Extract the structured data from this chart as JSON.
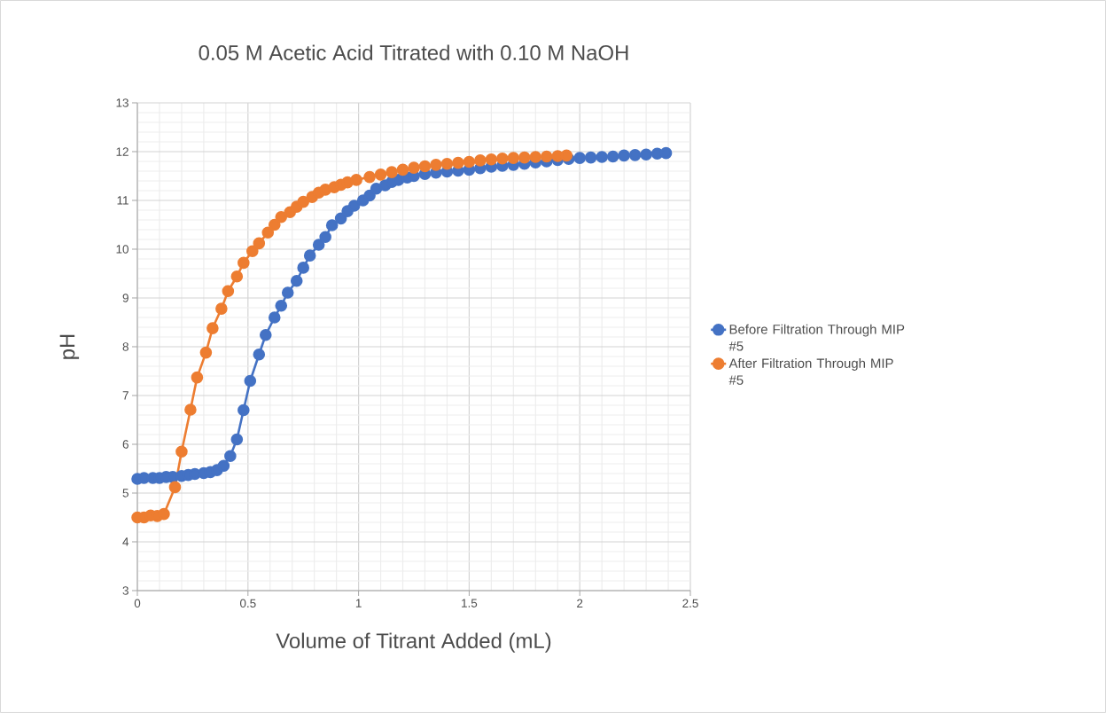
{
  "chart_data": {
    "type": "line",
    "title": "0.05 M Acetic Acid Titrated with 0.10 M NaOH",
    "xlabel": "Volume of Titrant Added (mL)",
    "ylabel": "pH",
    "xlim": [
      0,
      2.5
    ],
    "xticks": [
      0,
      0.5,
      1,
      1.5,
      2,
      2.5
    ],
    "ylim": [
      3,
      13
    ],
    "yticks": [
      3,
      4,
      5,
      6,
      7,
      8,
      9,
      10,
      11,
      12,
      13
    ],
    "grid": true,
    "legend": "right",
    "marker": "circle",
    "line_style": "solid",
    "series": [
      {
        "name": "Before Filtration Through MIP #5",
        "color": "#4472c4",
        "x": [
          0,
          0.03,
          0.07,
          0.1,
          0.13,
          0.16,
          0.2,
          0.23,
          0.26,
          0.3,
          0.33,
          0.36,
          0.39,
          0.42,
          0.45,
          0.48,
          0.51,
          0.55,
          0.58,
          0.62,
          0.65,
          0.68,
          0.72,
          0.75,
          0.78,
          0.82,
          0.85,
          0.88,
          0.92,
          0.95,
          0.98,
          1.02,
          1.05,
          1.08,
          1.12,
          1.15,
          1.18,
          1.22,
          1.25,
          1.3,
          1.35,
          1.4,
          1.45,
          1.5,
          1.55,
          1.6,
          1.65,
          1.7,
          1.75,
          1.8,
          1.85,
          1.9,
          1.95,
          2.0,
          2.05,
          2.1,
          2.15,
          2.2,
          2.25,
          2.3,
          2.35,
          2.39
        ],
        "values": [
          5.29,
          5.31,
          5.31,
          5.31,
          5.33,
          5.33,
          5.35,
          5.37,
          5.39,
          5.41,
          5.43,
          5.47,
          5.56,
          5.76,
          6.1,
          6.7,
          7.3,
          7.84,
          8.24,
          8.6,
          8.84,
          9.11,
          9.35,
          9.62,
          9.87,
          10.09,
          10.25,
          10.49,
          10.63,
          10.78,
          10.89,
          11.0,
          11.1,
          11.24,
          11.31,
          11.38,
          11.42,
          11.47,
          11.5,
          11.54,
          11.57,
          11.59,
          11.61,
          11.63,
          11.66,
          11.69,
          11.71,
          11.73,
          11.75,
          11.78,
          11.8,
          11.83,
          11.85,
          11.87,
          11.88,
          11.89,
          11.9,
          11.92,
          11.93,
          11.94,
          11.96,
          11.97
        ]
      },
      {
        "name": "After Filtration Through MIP #5",
        "color": "#ed7d31",
        "x": [
          0,
          0.03,
          0.06,
          0.09,
          0.12,
          0.17,
          0.2,
          0.24,
          0.27,
          0.31,
          0.34,
          0.38,
          0.41,
          0.45,
          0.48,
          0.52,
          0.55,
          0.59,
          0.62,
          0.65,
          0.69,
          0.72,
          0.75,
          0.79,
          0.82,
          0.85,
          0.89,
          0.92,
          0.95,
          0.99,
          1.05,
          1.1,
          1.15,
          1.2,
          1.25,
          1.3,
          1.35,
          1.4,
          1.45,
          1.5,
          1.55,
          1.6,
          1.65,
          1.7,
          1.75,
          1.8,
          1.85,
          1.9,
          1.94
        ],
        "values": [
          4.5,
          4.5,
          4.54,
          4.53,
          4.57,
          5.12,
          5.85,
          6.71,
          7.37,
          7.88,
          8.38,
          8.78,
          9.14,
          9.44,
          9.72,
          9.96,
          10.12,
          10.34,
          10.5,
          10.66,
          10.76,
          10.87,
          10.97,
          11.07,
          11.16,
          11.22,
          11.27,
          11.32,
          11.37,
          11.42,
          11.48,
          11.53,
          11.58,
          11.63,
          11.67,
          11.7,
          11.73,
          11.75,
          11.77,
          11.79,
          11.82,
          11.84,
          11.86,
          11.87,
          11.88,
          11.89,
          11.9,
          11.91,
          11.92
        ]
      }
    ]
  }
}
